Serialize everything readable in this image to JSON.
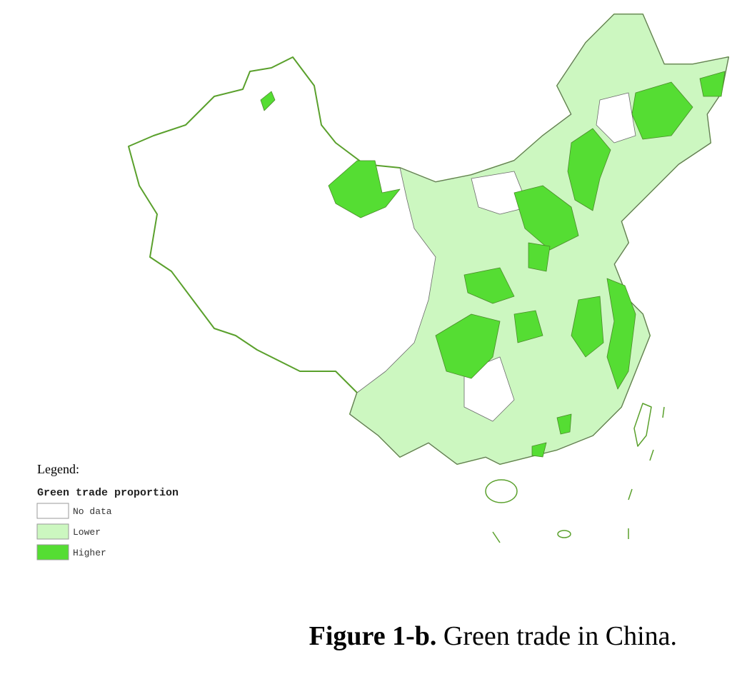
{
  "legend": {
    "heading": "Legend:",
    "title": "Green trade proportion",
    "items": [
      {
        "label": "No data",
        "color": "#ffffff"
      },
      {
        "label": "Lower",
        "color": "#ccf7c0"
      },
      {
        "label": "Higher",
        "color": "#55dd33"
      }
    ]
  },
  "caption": {
    "label": "Figure 1-b.",
    "text": "Green trade in China."
  }
}
